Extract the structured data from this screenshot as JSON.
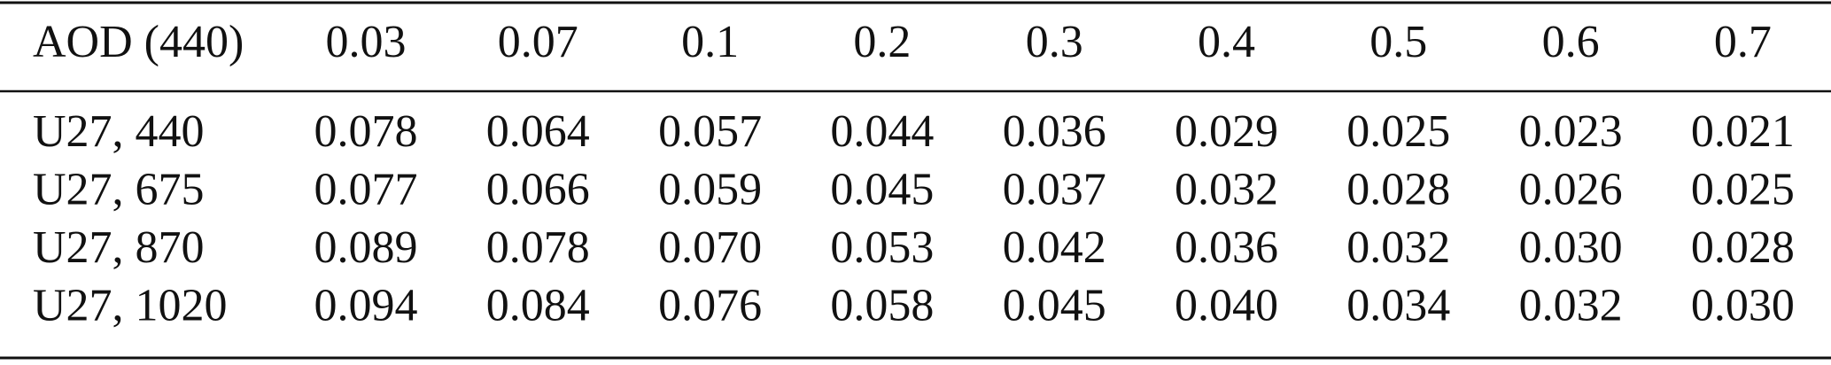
{
  "table": {
    "header": [
      "AOD (440)",
      "0.03",
      "0.07",
      "0.1",
      "0.2",
      "0.3",
      "0.4",
      "0.5",
      "0.6",
      "0.7"
    ],
    "rows": [
      [
        "U27, 440",
        "0.078",
        "0.064",
        "0.057",
        "0.044",
        "0.036",
        "0.029",
        "0.025",
        "0.023",
        "0.021"
      ],
      [
        "U27, 675",
        "0.077",
        "0.066",
        "0.059",
        "0.045",
        "0.037",
        "0.032",
        "0.028",
        "0.026",
        "0.025"
      ],
      [
        "U27, 870",
        "0.089",
        "0.078",
        "0.070",
        "0.053",
        "0.042",
        "0.036",
        "0.032",
        "0.030",
        "0.028"
      ],
      [
        "U27, 1020",
        "0.094",
        "0.084",
        "0.076",
        "0.058",
        "0.045",
        "0.040",
        "0.034",
        "0.032",
        "0.030"
      ]
    ]
  }
}
